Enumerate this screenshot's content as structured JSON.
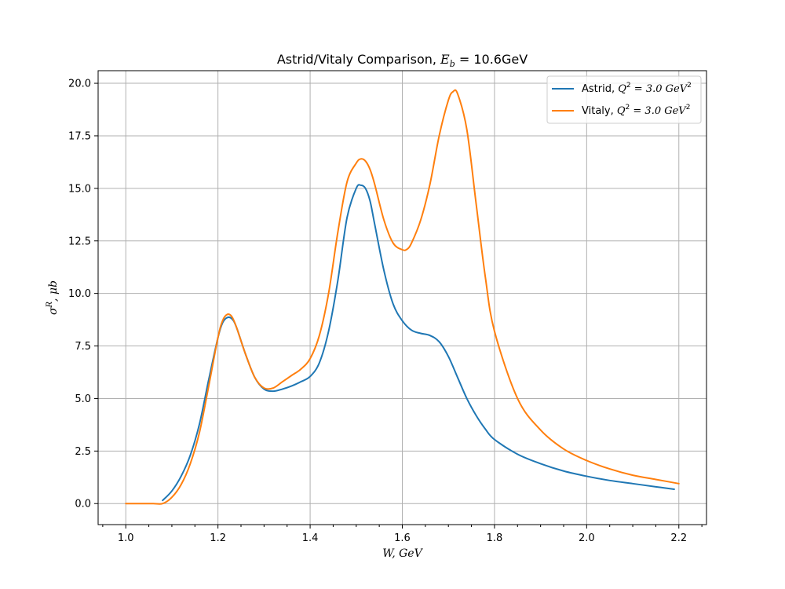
{
  "chart_data": {
    "type": "line",
    "title": {
      "prefix": "Astrid/Vitaly Comparison, ",
      "math": "E",
      "math_sub": "b",
      "math_rest": " = 10.6GeV"
    },
    "xlabel": "W, GeV",
    "ylabel": {
      "sigma": "σ",
      "sup": "R",
      "rest": ", μb"
    },
    "xlim": [
      0.94,
      2.26
    ],
    "ylim": [
      -1.0,
      20.6
    ],
    "xticks": [
      1.0,
      1.2,
      1.4,
      1.6,
      1.8,
      2.0,
      2.2
    ],
    "xtick_labels": [
      "1.0",
      "1.2",
      "1.4",
      "1.6",
      "1.8",
      "2.0",
      "2.2"
    ],
    "xminor_step": 0.05,
    "yticks": [
      0.0,
      2.5,
      5.0,
      7.5,
      10.0,
      12.5,
      15.0,
      17.5,
      20.0
    ],
    "ytick_labels": [
      "0.0",
      "2.5",
      "5.0",
      "7.5",
      "10.0",
      "12.5",
      "15.0",
      "17.5",
      "20.0"
    ],
    "grid": true,
    "legend_position": "top-right",
    "series": [
      {
        "name": "Astrid",
        "legend_math": "Q",
        "legend_math_sup": "2",
        "legend_math_rest": " = 3.0 GeV",
        "legend_math_rest_sup": "2",
        "color": "#1f77b4",
        "x": [
          1.08,
          1.1,
          1.12,
          1.14,
          1.16,
          1.18,
          1.2,
          1.21,
          1.22,
          1.23,
          1.24,
          1.26,
          1.28,
          1.3,
          1.32,
          1.34,
          1.36,
          1.38,
          1.4,
          1.42,
          1.44,
          1.46,
          1.48,
          1.5,
          1.51,
          1.52,
          1.53,
          1.54,
          1.56,
          1.58,
          1.6,
          1.62,
          1.64,
          1.66,
          1.68,
          1.7,
          1.72,
          1.74,
          1.76,
          1.78,
          1.8,
          1.85,
          1.9,
          1.95,
          2.0,
          2.05,
          2.1,
          2.15,
          2.19
        ],
        "y": [
          0.15,
          0.6,
          1.3,
          2.3,
          3.8,
          5.9,
          7.9,
          8.6,
          8.85,
          8.8,
          8.4,
          7.1,
          6.0,
          5.45,
          5.35,
          5.45,
          5.6,
          5.8,
          6.05,
          6.7,
          8.2,
          10.6,
          13.6,
          15.0,
          15.15,
          15.0,
          14.4,
          13.3,
          11.1,
          9.5,
          8.7,
          8.25,
          8.1,
          8.0,
          7.7,
          7.0,
          6.0,
          5.0,
          4.2,
          3.55,
          3.05,
          2.35,
          1.9,
          1.55,
          1.3,
          1.1,
          0.95,
          0.8,
          0.68
        ]
      },
      {
        "name": "Vitaly",
        "legend_math": "Q",
        "legend_math_sup": "2",
        "legend_math_rest": " = 3.0 GeV",
        "legend_math_rest_sup": "2",
        "color": "#ff7f0e",
        "x": [
          1.0,
          1.02,
          1.04,
          1.06,
          1.08,
          1.1,
          1.12,
          1.14,
          1.16,
          1.18,
          1.2,
          1.21,
          1.22,
          1.23,
          1.24,
          1.26,
          1.28,
          1.3,
          1.32,
          1.34,
          1.36,
          1.38,
          1.4,
          1.42,
          1.44,
          1.46,
          1.48,
          1.5,
          1.51,
          1.52,
          1.53,
          1.54,
          1.56,
          1.58,
          1.6,
          1.61,
          1.62,
          1.64,
          1.66,
          1.68,
          1.7,
          1.71,
          1.72,
          1.74,
          1.76,
          1.78,
          1.8,
          1.85,
          1.9,
          1.95,
          2.0,
          2.05,
          2.1,
          2.15,
          2.2
        ],
        "y": [
          0.0,
          0.0,
          0.0,
          0.0,
          0.0,
          0.3,
          0.9,
          1.9,
          3.4,
          5.6,
          7.9,
          8.7,
          9.0,
          8.9,
          8.4,
          7.1,
          6.0,
          5.5,
          5.5,
          5.8,
          6.1,
          6.4,
          6.9,
          8.0,
          10.0,
          12.9,
          15.3,
          16.2,
          16.4,
          16.3,
          15.9,
          15.2,
          13.5,
          12.4,
          12.08,
          12.1,
          12.4,
          13.5,
          15.2,
          17.5,
          19.2,
          19.6,
          19.5,
          17.8,
          14.3,
          10.8,
          8.2,
          5.0,
          3.5,
          2.6,
          2.05,
          1.65,
          1.35,
          1.15,
          0.95
        ]
      }
    ]
  }
}
